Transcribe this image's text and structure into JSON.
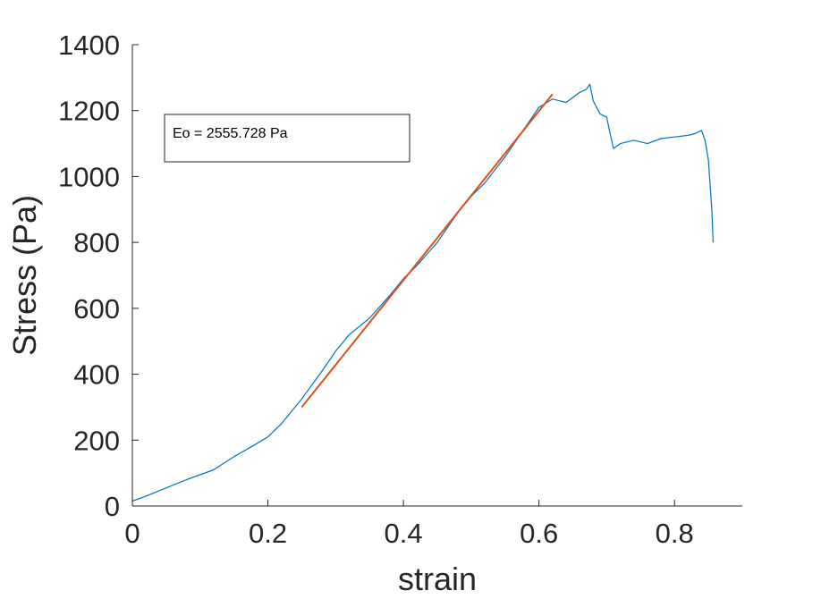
{
  "chart_data": {
    "type": "line",
    "xlabel": "strain",
    "ylabel": "Stress (Pa)",
    "xlim": [
      0,
      0.9
    ],
    "ylim": [
      0,
      1400
    ],
    "xticks": [
      0,
      0.2,
      0.4,
      0.6,
      0.8
    ],
    "xtick_labels": [
      "0",
      "0.2",
      "0.4",
      "0.6",
      "0.8"
    ],
    "yticks": [
      0,
      200,
      400,
      600,
      800,
      1000,
      1200,
      1400
    ],
    "ytick_labels": [
      "0",
      "200",
      "400",
      "600",
      "800",
      "1000",
      "1200",
      "1400"
    ],
    "grid": false,
    "series": [
      {
        "color": "#0072BD",
        "x": [
          0,
          0.02,
          0.05,
          0.08,
          0.1,
          0.12,
          0.15,
          0.18,
          0.2,
          0.22,
          0.25,
          0.28,
          0.3,
          0.32,
          0.35,
          0.38,
          0.4,
          0.42,
          0.45,
          0.48,
          0.5,
          0.52,
          0.55,
          0.58,
          0.6,
          0.62,
          0.63,
          0.64,
          0.65,
          0.66,
          0.67,
          0.675,
          0.68,
          0.69,
          0.7,
          0.705,
          0.71,
          0.72,
          0.74,
          0.76,
          0.78,
          0.8,
          0.82,
          0.83,
          0.84,
          0.845,
          0.85,
          0.855,
          0.857
        ],
        "y": [
          15,
          30,
          55,
          80,
          95,
          110,
          150,
          185,
          210,
          250,
          325,
          410,
          470,
          520,
          570,
          640,
          690,
          730,
          800,
          890,
          940,
          980,
          1060,
          1150,
          1210,
          1235,
          1230,
          1225,
          1240,
          1255,
          1265,
          1280,
          1230,
          1190,
          1180,
          1130,
          1085,
          1100,
          1110,
          1100,
          1115,
          1120,
          1125,
          1130,
          1140,
          1110,
          1050,
          900,
          800
        ]
      },
      {
        "color": "#D95319",
        "x": [
          0.25,
          0.62
        ],
        "y": [
          300,
          1250
        ]
      }
    ],
    "annotation": {
      "text": "Eo = 2555.728 Pa"
    }
  }
}
